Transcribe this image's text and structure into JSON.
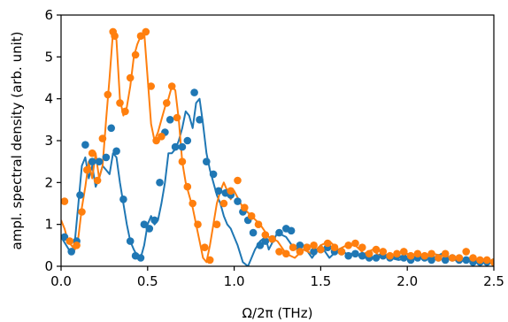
{
  "chart_data": {
    "type": "line",
    "xlabel": "Ω/2π (THz)",
    "ylabel": "ampl. spectral density (arb. unit)",
    "xlim": [
      0,
      2.5
    ],
    "ylim": [
      0,
      6
    ],
    "xticks": [
      "0.0",
      "0.5",
      "1.0",
      "1.5",
      "2.0",
      "2.5"
    ],
    "xtick_values": [
      0,
      0.5,
      1.0,
      1.5,
      2.0,
      2.5
    ],
    "yticks": [
      "0",
      "1",
      "2",
      "3",
      "4",
      "5",
      "6"
    ],
    "ytick_values": [
      0,
      1,
      2,
      3,
      4,
      5,
      6
    ],
    "grid": false,
    "series": [
      {
        "color": "#1f77b4",
        "line": {
          "x": [
            0.0,
            0.03,
            0.06,
            0.08,
            0.1,
            0.12,
            0.14,
            0.16,
            0.18,
            0.2,
            0.22,
            0.24,
            0.26,
            0.28,
            0.3,
            0.32,
            0.34,
            0.36,
            0.38,
            0.4,
            0.42,
            0.44,
            0.46,
            0.48,
            0.5,
            0.52,
            0.54,
            0.56,
            0.58,
            0.6,
            0.62,
            0.64,
            0.66,
            0.68,
            0.7,
            0.72,
            0.74,
            0.76,
            0.78,
            0.8,
            0.82,
            0.84,
            0.86,
            0.88,
            0.9,
            0.92,
            0.94,
            0.96,
            0.98,
            1.0,
            1.02,
            1.05,
            1.08,
            1.1,
            1.12,
            1.15,
            1.18,
            1.2,
            1.25,
            1.3,
            1.35,
            1.4,
            1.45,
            1.5,
            1.55,
            1.6,
            1.65,
            1.7,
            1.75,
            1.8,
            1.85,
            1.9,
            1.95,
            2.0,
            2.05,
            2.1,
            2.15,
            2.2,
            2.25,
            2.3,
            2.35,
            2.4,
            2.45,
            2.5
          ],
          "y": [
            0.7,
            0.5,
            0.3,
            0.6,
            1.5,
            2.4,
            2.6,
            2.1,
            2.4,
            1.9,
            2.1,
            2.4,
            2.3,
            2.2,
            2.7,
            2.6,
            2.0,
            1.5,
            1.0,
            0.6,
            0.4,
            0.25,
            0.2,
            0.5,
            1.0,
            1.2,
            1.0,
            1.1,
            1.5,
            2.0,
            2.7,
            2.7,
            2.8,
            3.0,
            3.3,
            3.7,
            3.6,
            3.3,
            3.9,
            4.0,
            3.4,
            2.7,
            2.3,
            2.0,
            1.7,
            1.5,
            1.2,
            1.0,
            0.9,
            0.7,
            0.5,
            0.1,
            0.0,
            0.2,
            0.4,
            0.6,
            0.7,
            0.4,
            0.8,
            0.7,
            0.4,
            0.5,
            0.2,
            0.5,
            0.2,
            0.4,
            0.3,
            0.3,
            0.2,
            0.2,
            0.3,
            0.2,
            0.15,
            0.2,
            0.3,
            0.2,
            0.2,
            0.3,
            0.2,
            0.1,
            0.2,
            0.15,
            0.1,
            0.1
          ]
        },
        "points": {
          "x": [
            0.02,
            0.06,
            0.09,
            0.11,
            0.14,
            0.18,
            0.22,
            0.26,
            0.29,
            0.32,
            0.36,
            0.4,
            0.43,
            0.46,
            0.48,
            0.51,
            0.54,
            0.57,
            0.6,
            0.63,
            0.66,
            0.7,
            0.73,
            0.77,
            0.8,
            0.84,
            0.88,
            0.91,
            0.95,
            0.98,
            1.02,
            1.05,
            1.08,
            1.11,
            1.15,
            1.18,
            1.22,
            1.26,
            1.3,
            1.33,
            1.38,
            1.42,
            1.46,
            1.5,
            1.54,
            1.58,
            1.62,
            1.66,
            1.7,
            1.74,
            1.78,
            1.82,
            1.86,
            1.9,
            1.94,
            1.98,
            2.02,
            2.06,
            2.1,
            2.14,
            2.18,
            2.22,
            2.26,
            2.3,
            2.34,
            2.38,
            2.42,
            2.46,
            2.5
          ],
          "y": [
            0.7,
            0.35,
            0.6,
            1.7,
            2.9,
            2.5,
            2.5,
            2.6,
            3.3,
            2.75,
            1.6,
            0.6,
            0.25,
            0.2,
            1.0,
            0.9,
            1.1,
            2.0,
            3.2,
            3.5,
            2.85,
            2.85,
            3.0,
            4.15,
            3.5,
            2.5,
            2.2,
            1.8,
            1.75,
            1.7,
            1.55,
            1.3,
            1.1,
            0.8,
            0.5,
            0.6,
            0.65,
            0.8,
            0.9,
            0.85,
            0.5,
            0.45,
            0.35,
            0.4,
            0.45,
            0.35,
            0.35,
            0.25,
            0.3,
            0.25,
            0.2,
            0.2,
            0.25,
            0.2,
            0.25,
            0.2,
            0.15,
            0.2,
            0.2,
            0.15,
            0.2,
            0.15,
            0.2,
            0.15,
            0.15,
            0.1,
            0.1,
            0.1,
            0.1
          ]
        }
      },
      {
        "color": "#ff7f0e",
        "line": {
          "x": [
            0.0,
            0.02,
            0.04,
            0.06,
            0.08,
            0.1,
            0.12,
            0.14,
            0.16,
            0.18,
            0.2,
            0.22,
            0.24,
            0.26,
            0.28,
            0.3,
            0.32,
            0.34,
            0.36,
            0.38,
            0.4,
            0.42,
            0.44,
            0.46,
            0.48,
            0.5,
            0.52,
            0.54,
            0.56,
            0.58,
            0.6,
            0.62,
            0.64,
            0.66,
            0.68,
            0.7,
            0.72,
            0.74,
            0.76,
            0.78,
            0.8,
            0.82,
            0.84,
            0.86,
            0.88,
            0.9,
            0.92,
            0.94,
            0.96,
            0.98,
            1.0,
            1.05,
            1.1,
            1.15,
            1.2,
            1.25,
            1.3,
            1.35,
            1.4,
            1.45,
            1.5,
            1.55,
            1.6,
            1.65,
            1.7,
            1.75,
            1.8,
            1.85,
            1.9,
            1.95,
            2.0,
            2.05,
            2.1,
            2.15,
            2.2,
            2.25,
            2.3,
            2.35,
            2.4,
            2.45,
            2.5
          ],
          "y": [
            1.1,
            0.9,
            0.6,
            0.5,
            0.4,
            0.7,
            1.4,
            1.9,
            2.5,
            2.1,
            2.7,
            2.1,
            2.4,
            3.5,
            4.5,
            5.6,
            5.4,
            4.0,
            3.6,
            3.8,
            4.3,
            5.0,
            5.3,
            5.5,
            5.6,
            4.5,
            3.4,
            3.0,
            3.2,
            3.5,
            3.8,
            4.0,
            4.3,
            4.2,
            3.5,
            2.5,
            2.0,
            1.7,
            1.4,
            1.0,
            0.6,
            0.2,
            0.1,
            0.5,
            1.0,
            1.5,
            1.8,
            2.0,
            1.8,
            1.6,
            1.8,
            1.4,
            1.2,
            1.0,
            0.7,
            0.6,
            0.3,
            0.2,
            0.4,
            0.3,
            0.5,
            0.6,
            0.4,
            0.5,
            0.5,
            0.3,
            0.4,
            0.2,
            0.3,
            0.2,
            0.3,
            0.2,
            0.2,
            0.3,
            0.25,
            0.2,
            0.1,
            0.2,
            0.1,
            0.15,
            0.1
          ]
        },
        "points": {
          "x": [
            0.02,
            0.05,
            0.09,
            0.12,
            0.15,
            0.18,
            0.21,
            0.24,
            0.27,
            0.3,
            0.31,
            0.34,
            0.37,
            0.4,
            0.43,
            0.46,
            0.49,
            0.52,
            0.55,
            0.58,
            0.61,
            0.64,
            0.67,
            0.7,
            0.73,
            0.76,
            0.79,
            0.83,
            0.86,
            0.9,
            0.94,
            0.98,
            1.02,
            1.06,
            1.1,
            1.14,
            1.18,
            1.22,
            1.26,
            1.3,
            1.34,
            1.38,
            1.42,
            1.46,
            1.5,
            1.54,
            1.58,
            1.62,
            1.66,
            1.7,
            1.74,
            1.78,
            1.82,
            1.86,
            1.9,
            1.94,
            1.98,
            2.02,
            2.06,
            2.1,
            2.14,
            2.18,
            2.22,
            2.26,
            2.3,
            2.34,
            2.38,
            2.42,
            2.46,
            2.5
          ],
          "y": [
            1.55,
            0.6,
            0.5,
            1.3,
            2.3,
            2.7,
            2.05,
            3.05,
            4.1,
            5.6,
            5.5,
            3.9,
            3.7,
            4.5,
            5.05,
            5.5,
            5.6,
            4.3,
            3.0,
            3.1,
            3.9,
            4.3,
            3.55,
            2.5,
            1.9,
            1.5,
            1.0,
            0.45,
            0.15,
            1.0,
            1.5,
            1.8,
            2.05,
            1.4,
            1.2,
            1.0,
            0.75,
            0.65,
            0.35,
            0.3,
            0.45,
            0.35,
            0.45,
            0.5,
            0.4,
            0.55,
            0.45,
            0.35,
            0.5,
            0.55,
            0.45,
            0.3,
            0.4,
            0.35,
            0.25,
            0.3,
            0.35,
            0.25,
            0.3,
            0.25,
            0.3,
            0.2,
            0.3,
            0.2,
            0.2,
            0.35,
            0.2,
            0.15,
            0.15,
            0.1
          ]
        }
      }
    ]
  }
}
